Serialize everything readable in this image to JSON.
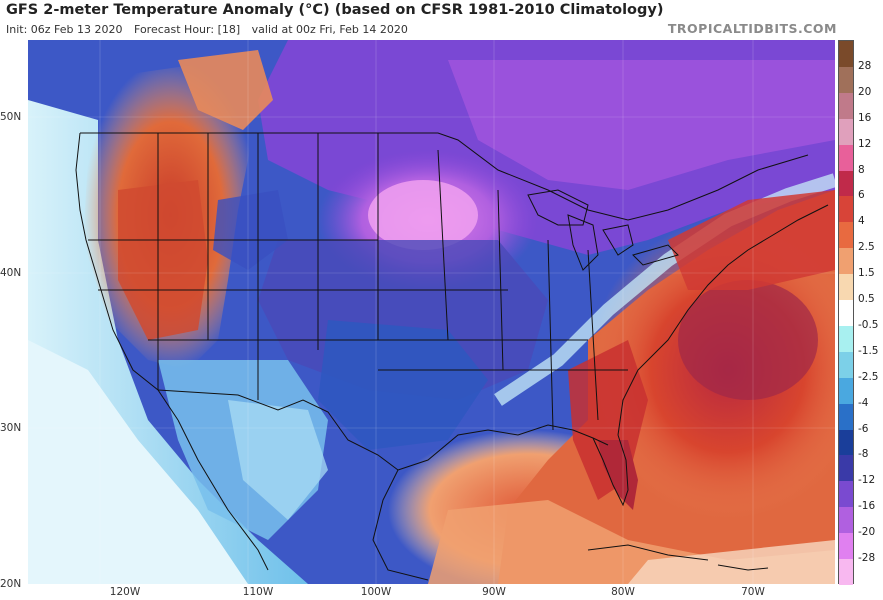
{
  "header": {
    "title": "GFS 2-meter Temperature Anomaly (°C) (based on CFSR 1981-2010 Climatology)",
    "init": "Init: 06z Feb 13 2020",
    "forecast_hour": "Forecast Hour: [18]",
    "valid": "valid at 00z Fri, Feb 14 2020",
    "brand": "TROPICALTIDBITS.COM"
  },
  "map": {
    "latitude_labels": [
      "50N",
      "40N",
      "30N",
      "20N"
    ],
    "longitude_labels": [
      "120W",
      "110W",
      "100W",
      "90W",
      "80W",
      "70W"
    ]
  },
  "colorbar": {
    "labels": [
      "28",
      "20",
      "16",
      "12",
      "8",
      "6",
      "4",
      "2.5",
      "1.5",
      "0.5",
      "-0.5",
      "-1.5",
      "-2.5",
      "-4",
      "-6",
      "-8",
      "-12",
      "-16",
      "-20",
      "-28"
    ],
    "colors": [
      "#7a4a2a",
      "#a0705a",
      "#c07a8a",
      "#e0a0bc",
      "#e8609a",
      "#c02a4a",
      "#d84438",
      "#e86a40",
      "#f0a070",
      "#f8d8b0",
      "#ffffff",
      "#a8f0f0",
      "#7cd0e8",
      "#4aa8e0",
      "#2a70c8",
      "#1a3e9a",
      "#3a3aa8",
      "#7a4ad0",
      "#b060e0",
      "#e080f0",
      "#f8b8f0"
    ]
  },
  "colors": {
    "deep_cold": "#3f2fa8",
    "very_cold": "#8a48d8",
    "cold": "#2f5ac4",
    "cool": "#5aa0e0",
    "mild": "#b8e6f4",
    "warm": "#d8452e",
    "very_warm": "#b82840",
    "hot": "#e87a50",
    "land_border": "#111111"
  }
}
